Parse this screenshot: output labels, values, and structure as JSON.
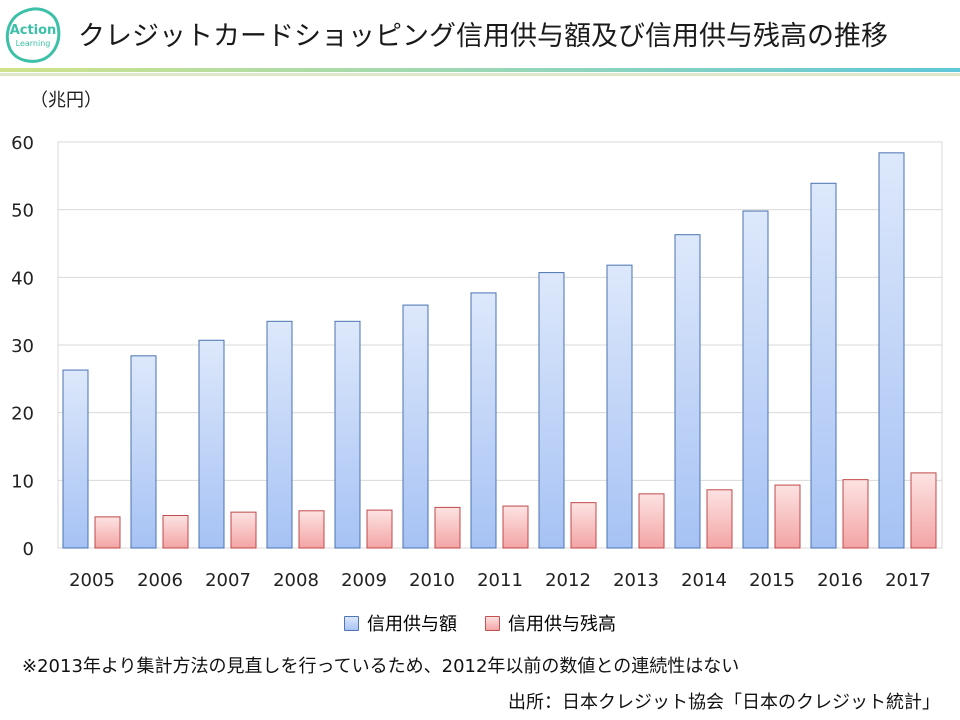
{
  "header": {
    "logo_text_top": "Action",
    "logo_text_bottom": "Learning",
    "title": "クレジットカードショッピング信用供与額及び信用供与残高の推移"
  },
  "unit_label": "（兆円）",
  "legend": {
    "series_1": "信用供与額",
    "series_2": "信用供与残高"
  },
  "footnote": "※2013年より集計方法の見直しを行っているため、2012年以前の数値との連続性はない",
  "source": "出所：日本クレジット協会「日本のクレジット統計」",
  "chart_data": {
    "type": "bar",
    "title": "クレジットカードショッピング信用供与額及び信用供与残高の推移",
    "xlabel": "",
    "ylabel": "（兆円）",
    "ylim": [
      0,
      60
    ],
    "yticks": [
      0,
      10,
      20,
      30,
      40,
      50,
      60
    ],
    "grid": true,
    "legend_position": "bottom",
    "categories": [
      "2005",
      "2006",
      "2007",
      "2008",
      "2009",
      "2010",
      "2011",
      "2012",
      "2013",
      "2014",
      "2015",
      "2016",
      "2017"
    ],
    "series": [
      {
        "name": "信用供与額",
        "values": [
          26.3,
          28.4,
          30.7,
          33.5,
          33.5,
          35.9,
          37.7,
          40.7,
          41.8,
          46.3,
          49.8,
          53.9,
          58.4
        ]
      },
      {
        "name": "信用供与残高",
        "values": [
          4.6,
          4.8,
          5.3,
          5.5,
          5.6,
          6.0,
          6.2,
          6.7,
          8.0,
          8.6,
          9.3,
          10.1,
          11.1
        ]
      }
    ],
    "colors": {
      "series_1_top": "#dde8fb",
      "series_1_bottom": "#a6c2f4",
      "series_1_border": "#4a72b0",
      "series_2_top": "#fde3e3",
      "series_2_bottom": "#f3a4a4",
      "series_2_border": "#c04848",
      "grid": "#d9d9d9"
    }
  }
}
